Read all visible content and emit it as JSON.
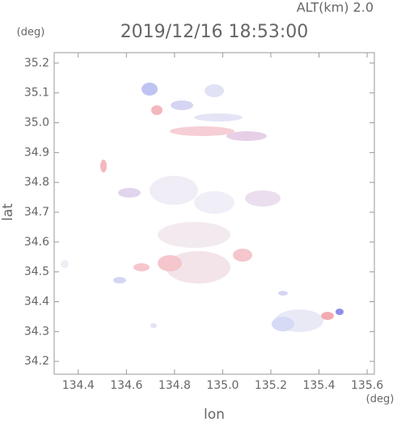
{
  "chart_data": {
    "type": "map",
    "title": "2019/12/16 18:53:00",
    "subtitle": "ALT(km)  2.0",
    "x_label": "lon",
    "x_unit": "(deg)",
    "y_label": "lat",
    "y_unit": "(deg)",
    "xlim": [
      134.3,
      135.63
    ],
    "ylim": [
      34.157,
      35.235
    ],
    "xticks": [
      134.4,
      134.6,
      134.8,
      {
        "value": 135.0,
        "label": "135.0"
      },
      135.2,
      135.4,
      135.6
    ],
    "yticks": [
      34.2,
      34.3,
      34.4,
      34.5,
      34.6,
      34.7,
      34.8,
      34.9,
      {
        "value": 35.0,
        "label": "35.0"
      },
      35.1,
      35.2
    ]
  }
}
